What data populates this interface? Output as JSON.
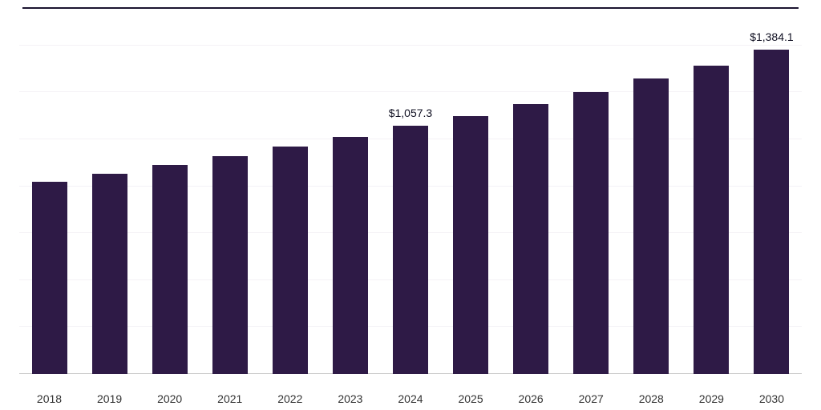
{
  "chart_data": {
    "type": "bar",
    "title": "",
    "xlabel": "",
    "ylabel": "",
    "categories": [
      "2018",
      "2019",
      "2020",
      "2021",
      "2022",
      "2023",
      "2024",
      "2025",
      "2026",
      "2027",
      "2028",
      "2029",
      "2030"
    ],
    "values": [
      820,
      855,
      890,
      930,
      970,
      1012,
      1057.3,
      1098,
      1150,
      1200,
      1258,
      1315,
      1384.1
    ],
    "data_labels": [
      "",
      "",
      "",
      "",
      "",
      "",
      "$1,057.3",
      "",
      "",
      "",
      "",
      "",
      "$1,384.1"
    ],
    "ylim": [
      0,
      1560
    ],
    "gridline_step": 200,
    "grid": "horizontal-faint",
    "legend_position": "none",
    "colors": {
      "bar": "#2e1a46",
      "top_border": "#1c1430",
      "gridline": "#f4f2f6",
      "baseline": "#cccccc",
      "tick_label": "#333333",
      "value_label": "#101022"
    }
  }
}
